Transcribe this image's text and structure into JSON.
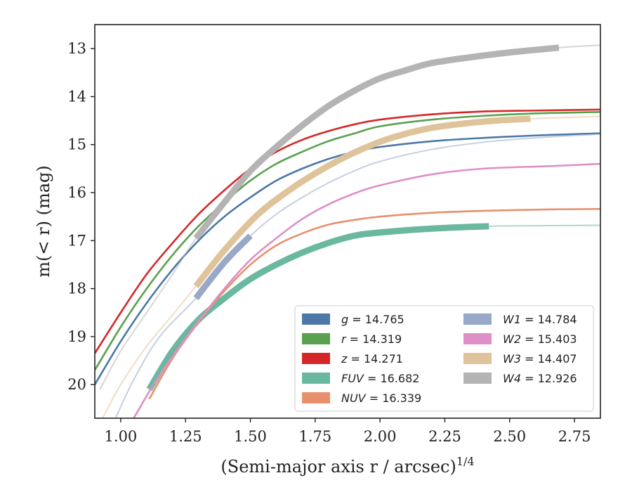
{
  "chart_data": {
    "type": "line",
    "xlabel": "(Semi-major axis r / arcsec)",
    "xlabel_superscript": "1/4",
    "ylabel": "m(< r) (mag)",
    "xlim": [
      0.9,
      2.85
    ],
    "ylim": [
      20.7,
      12.5
    ],
    "y_inverted": true,
    "grid": false,
    "legend_position": "lower-right",
    "x_ticks": [
      "1.00",
      "1.25",
      "1.50",
      "1.75",
      "2.00",
      "2.25",
      "2.50",
      "2.75"
    ],
    "y_ticks": [
      "13",
      "14",
      "15",
      "16",
      "17",
      "18",
      "19",
      "20"
    ],
    "series": [
      {
        "name": "g",
        "legend_label": "g = 14.765",
        "color": "#4c78a8",
        "x": [
          0.9,
          1.0,
          1.1,
          1.2,
          1.3,
          1.4,
          1.5,
          1.6,
          1.7,
          1.8,
          1.9,
          2.0,
          2.2,
          2.4,
          2.6,
          2.7,
          2.85
        ],
        "y": [
          20.0,
          19.1,
          18.3,
          17.6,
          17.0,
          16.5,
          16.1,
          15.75,
          15.5,
          15.3,
          15.15,
          15.05,
          14.93,
          14.86,
          14.81,
          14.79,
          14.765
        ]
      },
      {
        "name": "r",
        "legend_label": "r = 14.319",
        "color": "#59a14f",
        "x": [
          0.9,
          1.0,
          1.1,
          1.2,
          1.3,
          1.4,
          1.5,
          1.6,
          1.7,
          1.8,
          1.9,
          2.0,
          2.2,
          2.4,
          2.6,
          2.85
        ],
        "y": [
          19.7,
          18.8,
          18.0,
          17.3,
          16.7,
          16.2,
          15.75,
          15.4,
          15.15,
          14.93,
          14.77,
          14.62,
          14.48,
          14.4,
          14.35,
          14.32
        ]
      },
      {
        "name": "z",
        "legend_label": "z = 14.271",
        "color": "#d62728",
        "x": [
          0.9,
          1.0,
          1.1,
          1.2,
          1.3,
          1.4,
          1.5,
          1.6,
          1.7,
          1.8,
          1.9,
          2.0,
          2.2,
          2.4,
          2.6,
          2.85
        ],
        "y": [
          19.35,
          18.5,
          17.7,
          17.05,
          16.45,
          15.95,
          15.5,
          15.15,
          14.9,
          14.72,
          14.58,
          14.48,
          14.37,
          14.31,
          14.29,
          14.27
        ]
      },
      {
        "name": "FUV",
        "legend_label": "FUV = 16.682",
        "color": "#6ab8a0",
        "x": [
          1.11,
          1.2,
          1.3,
          1.4,
          1.5,
          1.6,
          1.7,
          1.8,
          1.9,
          2.0,
          2.2,
          2.42,
          2.6,
          2.85
        ],
        "y": [
          20.1,
          19.3,
          18.65,
          18.2,
          17.8,
          17.5,
          17.25,
          17.05,
          16.9,
          16.83,
          16.75,
          16.7,
          16.69,
          16.68
        ]
      },
      {
        "name": "NUV",
        "legend_label": "NUV = 16.339",
        "color": "#e8906c",
        "x": [
          1.11,
          1.2,
          1.3,
          1.4,
          1.5,
          1.6,
          1.7,
          1.8,
          1.9,
          2.0,
          2.2,
          2.4,
          2.66,
          2.85
        ],
        "y": [
          20.3,
          19.45,
          18.7,
          18.05,
          17.5,
          17.1,
          16.85,
          16.67,
          16.57,
          16.5,
          16.42,
          16.38,
          16.35,
          16.34
        ]
      },
      {
        "name": "W1",
        "legend_label": "W1 = 14.784",
        "color": "#97a8c8",
        "x": [
          0.98,
          1.05,
          1.15,
          1.29,
          1.4,
          1.5,
          1.6,
          1.7,
          1.8,
          1.9,
          2.0,
          2.2,
          2.4,
          2.6,
          2.85
        ],
        "y": [
          20.7,
          19.9,
          19.0,
          18.2,
          17.45,
          16.9,
          16.45,
          16.1,
          15.8,
          15.55,
          15.35,
          15.1,
          14.95,
          14.86,
          14.78
        ]
      },
      {
        "name": "W2",
        "legend_label": "W2 = 15.403",
        "color": "#de8fc6",
        "x": [
          1.05,
          1.15,
          1.29,
          1.4,
          1.5,
          1.6,
          1.7,
          1.8,
          1.9,
          2.0,
          2.2,
          2.4,
          2.65,
          2.85
        ],
        "y": [
          20.7,
          19.8,
          18.75,
          18.0,
          17.4,
          16.95,
          16.55,
          16.25,
          16.02,
          15.85,
          15.62,
          15.5,
          15.45,
          15.4
        ]
      },
      {
        "name": "W3",
        "legend_label": "W3 = 14.407",
        "color": "#dfc39a",
        "x": [
          0.93,
          1.0,
          1.1,
          1.2,
          1.29,
          1.4,
          1.53,
          1.65,
          1.75,
          1.85,
          1.95,
          2.05,
          2.2,
          2.4,
          2.58,
          2.85
        ],
        "y": [
          20.7,
          20.0,
          19.2,
          18.55,
          17.95,
          17.2,
          16.45,
          15.95,
          15.6,
          15.3,
          15.05,
          14.85,
          14.65,
          14.52,
          14.46,
          14.41
        ]
      },
      {
        "name": "W4",
        "legend_label": "W4 = 12.926",
        "color": "#b4b4b4",
        "x": [
          0.92,
          1.0,
          1.1,
          1.2,
          1.29,
          1.4,
          1.5,
          1.6,
          1.7,
          1.8,
          1.9,
          2.0,
          2.1,
          2.2,
          2.35,
          2.5,
          2.69,
          2.85
        ],
        "y": [
          20.1,
          19.3,
          18.5,
          17.7,
          16.95,
          16.2,
          15.55,
          15.05,
          14.6,
          14.2,
          13.88,
          13.62,
          13.45,
          13.3,
          13.18,
          13.08,
          12.98,
          12.93
        ]
      }
    ],
    "highlight_ranges": [
      {
        "name": "FUV",
        "x_from": 1.11,
        "x_to": 2.42
      },
      {
        "name": "W1",
        "x_from": 1.29,
        "x_to": 1.55
      },
      {
        "name": "W3",
        "x_from": 1.29,
        "x_to": 2.58
      },
      {
        "name": "W4",
        "x_from": 1.29,
        "x_to": 2.69
      }
    ]
  }
}
